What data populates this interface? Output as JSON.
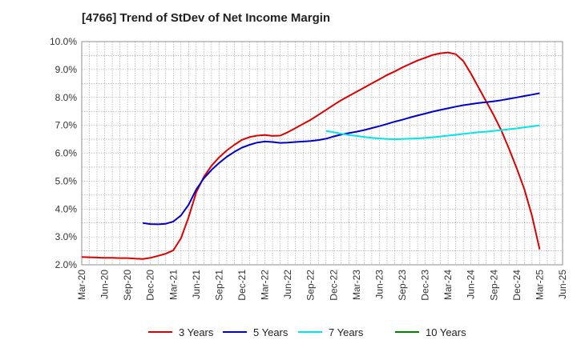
{
  "chart_data": {
    "type": "line",
    "title": "[4766]  Trend of StDev of Net Income Margin",
    "xlabel": "",
    "ylabel": "",
    "ylim": [
      2.0,
      10.0
    ],
    "y_ticks": [
      "2.0%",
      "3.0%",
      "4.0%",
      "5.0%",
      "6.0%",
      "7.0%",
      "8.0%",
      "9.0%",
      "10.0%"
    ],
    "x_ticks": [
      "Mar-20",
      "Jun-20",
      "Sep-20",
      "Dec-20",
      "Mar-21",
      "Jun-21",
      "Sep-21",
      "Dec-21",
      "Mar-22",
      "Jun-22",
      "Sep-22",
      "Dec-22",
      "Mar-23",
      "Jun-23",
      "Sep-23",
      "Dec-23",
      "Mar-24",
      "Jun-24",
      "Sep-24",
      "Dec-24",
      "Mar-25",
      "Jun-25"
    ],
    "grid": true,
    "legend_position": "bottom",
    "series": [
      {
        "name": "3 Years",
        "color": "#dd0000",
        "points": [
          [
            "Mar-20",
            2.28
          ],
          [
            "Apr-20",
            2.27
          ],
          [
            "May-20",
            2.26
          ],
          [
            "Jun-20",
            2.25
          ],
          [
            "Jul-20",
            2.25
          ],
          [
            "Aug-20",
            2.24
          ],
          [
            "Sep-20",
            2.24
          ],
          [
            "Oct-20",
            2.22
          ],
          [
            "Nov-20",
            2.21
          ],
          [
            "Dec-20",
            2.25
          ],
          [
            "Jan-21",
            2.32
          ],
          [
            "Feb-21",
            2.4
          ],
          [
            "Mar-21",
            2.52
          ],
          [
            "Apr-21",
            2.95
          ],
          [
            "May-21",
            3.7
          ],
          [
            "Jun-21",
            4.6
          ],
          [
            "Jul-21",
            5.15
          ],
          [
            "Aug-21",
            5.55
          ],
          [
            "Sep-21",
            5.85
          ],
          [
            "Oct-21",
            6.1
          ],
          [
            "Nov-21",
            6.3
          ],
          [
            "Dec-21",
            6.48
          ],
          [
            "Jan-22",
            6.58
          ],
          [
            "Feb-22",
            6.63
          ],
          [
            "Mar-22",
            6.65
          ],
          [
            "Apr-22",
            6.62
          ],
          [
            "May-22",
            6.63
          ],
          [
            "Jun-22",
            6.75
          ],
          [
            "Jul-22",
            6.9
          ],
          [
            "Aug-22",
            7.05
          ],
          [
            "Sep-22",
            7.2
          ],
          [
            "Oct-22",
            7.37
          ],
          [
            "Nov-22",
            7.55
          ],
          [
            "Dec-22",
            7.73
          ],
          [
            "Jan-23",
            7.9
          ],
          [
            "Feb-23",
            8.05
          ],
          [
            "Mar-23",
            8.2
          ],
          [
            "Apr-23",
            8.35
          ],
          [
            "May-23",
            8.5
          ],
          [
            "Jun-23",
            8.65
          ],
          [
            "Jul-23",
            8.8
          ],
          [
            "Aug-23",
            8.93
          ],
          [
            "Sep-23",
            9.07
          ],
          [
            "Oct-23",
            9.2
          ],
          [
            "Nov-23",
            9.32
          ],
          [
            "Dec-23",
            9.42
          ],
          [
            "Jan-24",
            9.52
          ],
          [
            "Feb-24",
            9.58
          ],
          [
            "Mar-24",
            9.61
          ],
          [
            "Apr-24",
            9.55
          ],
          [
            "May-24",
            9.3
          ],
          [
            "Jun-24",
            8.85
          ],
          [
            "Jul-24",
            8.35
          ],
          [
            "Aug-24",
            7.85
          ],
          [
            "Sep-24",
            7.35
          ],
          [
            "Oct-24",
            6.8
          ],
          [
            "Nov-24",
            6.15
          ],
          [
            "Dec-24",
            5.45
          ],
          [
            "Jan-25",
            4.7
          ],
          [
            "Feb-25",
            3.75
          ],
          [
            "Mar-25",
            2.55
          ]
        ]
      },
      {
        "name": "5 Years",
        "color": "#0000cc",
        "points": [
          [
            "Nov-20",
            3.5
          ],
          [
            "Dec-20",
            3.46
          ],
          [
            "Jan-21",
            3.45
          ],
          [
            "Feb-21",
            3.47
          ],
          [
            "Mar-21",
            3.55
          ],
          [
            "Apr-21",
            3.77
          ],
          [
            "May-21",
            4.15
          ],
          [
            "Jun-21",
            4.7
          ],
          [
            "Jul-21",
            5.1
          ],
          [
            "Aug-21",
            5.4
          ],
          [
            "Sep-21",
            5.65
          ],
          [
            "Oct-21",
            5.87
          ],
          [
            "Nov-21",
            6.05
          ],
          [
            "Dec-21",
            6.2
          ],
          [
            "Jan-22",
            6.3
          ],
          [
            "Feb-22",
            6.38
          ],
          [
            "Mar-22",
            6.42
          ],
          [
            "Apr-22",
            6.4
          ],
          [
            "May-22",
            6.37
          ],
          [
            "Jun-22",
            6.38
          ],
          [
            "Jul-22",
            6.4
          ],
          [
            "Aug-22",
            6.42
          ],
          [
            "Sep-22",
            6.44
          ],
          [
            "Oct-22",
            6.47
          ],
          [
            "Nov-22",
            6.52
          ],
          [
            "Dec-22",
            6.6
          ],
          [
            "Jan-23",
            6.67
          ],
          [
            "Feb-23",
            6.72
          ],
          [
            "Mar-23",
            6.77
          ],
          [
            "Apr-23",
            6.83
          ],
          [
            "May-23",
            6.9
          ],
          [
            "Jun-23",
            6.97
          ],
          [
            "Jul-23",
            7.05
          ],
          [
            "Aug-23",
            7.13
          ],
          [
            "Sep-23",
            7.2
          ],
          [
            "Oct-23",
            7.28
          ],
          [
            "Nov-23",
            7.35
          ],
          [
            "Dec-23",
            7.42
          ],
          [
            "Jan-24",
            7.49
          ],
          [
            "Feb-24",
            7.55
          ],
          [
            "Mar-24",
            7.61
          ],
          [
            "Apr-24",
            7.67
          ],
          [
            "May-24",
            7.72
          ],
          [
            "Jun-24",
            7.76
          ],
          [
            "Jul-24",
            7.8
          ],
          [
            "Aug-24",
            7.83
          ],
          [
            "Sep-24",
            7.86
          ],
          [
            "Oct-24",
            7.9
          ],
          [
            "Nov-24",
            7.95
          ],
          [
            "Dec-24",
            8.0
          ],
          [
            "Jan-25",
            8.05
          ],
          [
            "Feb-25",
            8.1
          ],
          [
            "Mar-25",
            8.15
          ]
        ]
      },
      {
        "name": "7 Years",
        "color": "#00e5e5",
        "points": [
          [
            "Nov-22",
            6.8
          ],
          [
            "Dec-22",
            6.75
          ],
          [
            "Jan-23",
            6.7
          ],
          [
            "Feb-23",
            6.65
          ],
          [
            "Mar-23",
            6.62
          ],
          [
            "Apr-23",
            6.58
          ],
          [
            "May-23",
            6.55
          ],
          [
            "Jun-23",
            6.53
          ],
          [
            "Jul-23",
            6.51
          ],
          [
            "Aug-23",
            6.5
          ],
          [
            "Sep-23",
            6.51
          ],
          [
            "Oct-23",
            6.52
          ],
          [
            "Nov-23",
            6.53
          ],
          [
            "Dec-23",
            6.55
          ],
          [
            "Jan-24",
            6.57
          ],
          [
            "Feb-24",
            6.6
          ],
          [
            "Mar-24",
            6.63
          ],
          [
            "Apr-24",
            6.66
          ],
          [
            "May-24",
            6.69
          ],
          [
            "Jun-24",
            6.72
          ],
          [
            "Jul-24",
            6.75
          ],
          [
            "Aug-24",
            6.77
          ],
          [
            "Sep-24",
            6.8
          ],
          [
            "Oct-24",
            6.83
          ],
          [
            "Nov-24",
            6.86
          ],
          [
            "Dec-24",
            6.89
          ],
          [
            "Jan-25",
            6.93
          ],
          [
            "Feb-25",
            6.96
          ],
          [
            "Mar-25",
            7.0
          ]
        ]
      },
      {
        "name": "10 Years",
        "color": "#008000",
        "points": []
      }
    ]
  }
}
